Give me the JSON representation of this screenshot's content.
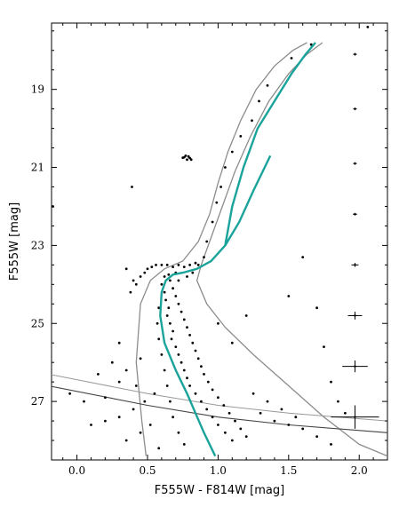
{
  "chart_data": {
    "type": "scatter",
    "title": "",
    "xlabel": "F555W - F814W [mag]",
    "ylabel": "F555W [mag]",
    "xlim": [
      -0.18,
      2.2
    ],
    "ylim": [
      28.5,
      17.3
    ],
    "y_inverted": true,
    "grid": false,
    "x_ticks": [
      0.0,
      0.5,
      1.0,
      1.5,
      2.0
    ],
    "x_tick_labels": [
      "0.0",
      "0.5",
      "1.0",
      "1.5",
      "2.0"
    ],
    "y_ticks": [
      19,
      21,
      23,
      25,
      27
    ],
    "y_tick_labels": [
      "19",
      "21",
      "23",
      "25",
      "27"
    ],
    "colors": {
      "points": "#000000",
      "isochrone": "#1aa39a",
      "envelope": "#8c8c8c",
      "completeness": "#444444"
    },
    "isochrone": {
      "name": "",
      "x": [
        0.98,
        0.9,
        0.84,
        0.78,
        0.7,
        0.62,
        0.59,
        0.6,
        0.63,
        0.68,
        0.75,
        0.85,
        0.95,
        1.05,
        1.15,
        1.25,
        1.37
      ],
      "y": [
        28.4,
        27.8,
        27.3,
        26.8,
        26.2,
        25.5,
        24.8,
        24.2,
        23.9,
        23.75,
        23.7,
        23.6,
        23.4,
        23.0,
        22.4,
        21.6,
        20.7
      ]
    },
    "isochrone_upper": {
      "x": [
        1.05,
        1.1,
        1.18,
        1.28,
        1.4,
        1.52,
        1.62,
        1.69
      ],
      "y": [
        23.0,
        22.0,
        21.0,
        20.0,
        19.3,
        18.6,
        18.1,
        17.8
      ]
    },
    "envelope_blue": {
      "x": [
        0.49,
        0.46,
        0.42,
        0.45,
        0.52,
        0.62,
        0.75,
        0.86,
        0.94,
        1.0,
        1.07,
        1.16,
        1.27,
        1.4,
        1.53,
        1.63
      ],
      "y": [
        28.4,
        27.5,
        26.0,
        24.5,
        23.9,
        23.6,
        23.4,
        22.9,
        22.2,
        21.4,
        20.6,
        19.8,
        19.0,
        18.4,
        18.0,
        17.8
      ]
    },
    "envelope_red": {
      "x": [
        2.2,
        2.0,
        1.75,
        1.5,
        1.25,
        1.05,
        0.92,
        0.85,
        0.88,
        0.95,
        1.03,
        1.12,
        1.23,
        1.36,
        1.5,
        1.63,
        1.74
      ],
      "y": [
        28.4,
        28.1,
        27.4,
        26.6,
        25.8,
        25.1,
        24.5,
        23.9,
        23.5,
        22.8,
        22.0,
        21.1,
        20.2,
        19.3,
        18.6,
        18.1,
        17.8
      ]
    },
    "completeness_line_1": {
      "x": [
        -0.2,
        0.5,
        1.0,
        1.5,
        2.2
      ],
      "y": [
        26.6,
        27.1,
        27.4,
        27.6,
        27.8
      ]
    },
    "completeness_line_2": {
      "x": [
        -0.2,
        0.5,
        1.0,
        1.5,
        2.2
      ],
      "y": [
        26.3,
        26.8,
        27.1,
        27.3,
        27.5
      ]
    },
    "error_bars": [
      {
        "x": 1.97,
        "y": 18.1,
        "xerr": 0.01,
        "yerr": 0.01
      },
      {
        "x": 1.97,
        "y": 19.5,
        "xerr": 0.01,
        "yerr": 0.01
      },
      {
        "x": 1.97,
        "y": 20.9,
        "xerr": 0.012,
        "yerr": 0.02
      },
      {
        "x": 1.97,
        "y": 22.2,
        "xerr": 0.015,
        "yerr": 0.03
      },
      {
        "x": 1.97,
        "y": 23.5,
        "xerr": 0.025,
        "yerr": 0.05
      },
      {
        "x": 1.97,
        "y": 24.8,
        "xerr": 0.05,
        "yerr": 0.1
      },
      {
        "x": 1.97,
        "y": 26.1,
        "xerr": 0.09,
        "yerr": 0.15
      },
      {
        "x": 1.97,
        "y": 27.4,
        "xerr": 0.17,
        "yerr": 0.3
      }
    ],
    "points": [
      [
        1.66,
        17.85
      ],
      [
        1.52,
        18.2
      ],
      [
        1.35,
        18.9
      ],
      [
        1.29,
        19.3
      ],
      [
        1.24,
        19.8
      ],
      [
        1.16,
        20.2
      ],
      [
        1.1,
        20.6
      ],
      [
        1.05,
        21.0
      ],
      [
        1.02,
        21.5
      ],
      [
        0.99,
        21.9
      ],
      [
        0.96,
        22.4
      ],
      [
        0.92,
        22.9
      ],
      [
        0.9,
        23.3
      ],
      [
        0.75,
        20.75
      ],
      [
        0.77,
        20.7
      ],
      [
        0.79,
        20.72
      ],
      [
        0.8,
        20.76
      ],
      [
        0.78,
        20.8
      ],
      [
        0.76,
        20.74
      ],
      [
        0.81,
        20.8
      ],
      [
        0.39,
        21.5
      ],
      [
        2.06,
        17.4
      ],
      [
        -0.17,
        22.0
      ],
      [
        0.35,
        23.6
      ],
      [
        0.4,
        23.9
      ],
      [
        0.38,
        24.2
      ],
      [
        0.42,
        24.0
      ],
      [
        0.45,
        23.8
      ],
      [
        0.48,
        23.7
      ],
      [
        0.5,
        23.6
      ],
      [
        0.53,
        23.55
      ],
      [
        0.56,
        23.5
      ],
      [
        0.6,
        23.5
      ],
      [
        0.64,
        23.5
      ],
      [
        0.68,
        23.55
      ],
      [
        0.72,
        23.5
      ],
      [
        0.76,
        23.55
      ],
      [
        0.8,
        23.5
      ],
      [
        0.84,
        23.45
      ],
      [
        0.86,
        23.5
      ],
      [
        0.7,
        23.7
      ],
      [
        0.65,
        23.75
      ],
      [
        0.62,
        23.8
      ],
      [
        0.66,
        23.9
      ],
      [
        0.72,
        23.9
      ],
      [
        0.78,
        23.8
      ],
      [
        0.82,
        23.7
      ],
      [
        0.6,
        24.0
      ],
      [
        0.62,
        24.2
      ],
      [
        0.63,
        24.4
      ],
      [
        0.65,
        24.6
      ],
      [
        0.64,
        24.8
      ],
      [
        0.66,
        25.0
      ],
      [
        0.68,
        25.2
      ],
      [
        0.67,
        25.4
      ],
      [
        0.7,
        25.6
      ],
      [
        0.72,
        25.8
      ],
      [
        0.74,
        26.0
      ],
      [
        0.76,
        26.2
      ],
      [
        0.78,
        26.4
      ],
      [
        0.8,
        26.6
      ],
      [
        0.84,
        26.8
      ],
      [
        0.88,
        27.0
      ],
      [
        0.92,
        27.2
      ],
      [
        0.96,
        27.4
      ],
      [
        1.0,
        27.6
      ],
      [
        1.05,
        27.8
      ],
      [
        1.1,
        28.0
      ],
      [
        0.68,
        24.1
      ],
      [
        0.7,
        24.3
      ],
      [
        0.72,
        24.5
      ],
      [
        0.74,
        24.7
      ],
      [
        0.76,
        24.9
      ],
      [
        0.78,
        25.1
      ],
      [
        0.8,
        25.3
      ],
      [
        0.82,
        25.5
      ],
      [
        0.84,
        25.7
      ],
      [
        0.86,
        25.9
      ],
      [
        0.88,
        26.1
      ],
      [
        0.9,
        26.3
      ],
      [
        0.93,
        26.5
      ],
      [
        0.96,
        26.7
      ],
      [
        1.0,
        26.9
      ],
      [
        1.04,
        27.1
      ],
      [
        1.08,
        27.3
      ],
      [
        1.12,
        27.5
      ],
      [
        1.16,
        27.7
      ],
      [
        1.2,
        27.9
      ],
      [
        0.58,
        24.6
      ],
      [
        0.57,
        25.0
      ],
      [
        0.58,
        25.4
      ],
      [
        0.6,
        25.8
      ],
      [
        0.62,
        26.2
      ],
      [
        0.64,
        26.6
      ],
      [
        0.66,
        27.0
      ],
      [
        0.68,
        27.4
      ],
      [
        0.72,
        27.8
      ],
      [
        0.76,
        28.1
      ],
      [
        0.55,
        26.8
      ],
      [
        0.48,
        27.0
      ],
      [
        0.4,
        27.2
      ],
      [
        0.3,
        27.4
      ],
      [
        0.2,
        27.5
      ],
      [
        0.1,
        27.6
      ],
      [
        0.52,
        27.6
      ],
      [
        0.45,
        27.8
      ],
      [
        0.35,
        28.0
      ],
      [
        0.58,
        28.2
      ],
      [
        1.3,
        27.3
      ],
      [
        1.4,
        27.5
      ],
      [
        1.5,
        27.6
      ],
      [
        1.6,
        27.7
      ],
      [
        1.25,
        26.8
      ],
      [
        1.35,
        27.0
      ],
      [
        1.45,
        27.2
      ],
      [
        1.55,
        27.4
      ],
      [
        1.7,
        27.9
      ],
      [
        1.8,
        28.1
      ],
      [
        1.0,
        25.0
      ],
      [
        1.1,
        25.5
      ],
      [
        1.2,
        24.8
      ],
      [
        1.5,
        24.3
      ],
      [
        1.6,
        23.3
      ],
      [
        1.7,
        24.6
      ],
      [
        1.75,
        25.6
      ],
      [
        1.8,
        26.5
      ],
      [
        1.85,
        27.0
      ],
      [
        1.9,
        27.3
      ],
      [
        0.3,
        25.5
      ],
      [
        0.25,
        26.0
      ],
      [
        0.3,
        26.5
      ],
      [
        0.35,
        26.2
      ],
      [
        0.42,
        26.6
      ],
      [
        0.2,
        26.9
      ],
      [
        0.05,
        27.0
      ],
      [
        -0.05,
        26.8
      ],
      [
        0.15,
        26.3
      ],
      [
        0.45,
        25.9
      ]
    ]
  }
}
